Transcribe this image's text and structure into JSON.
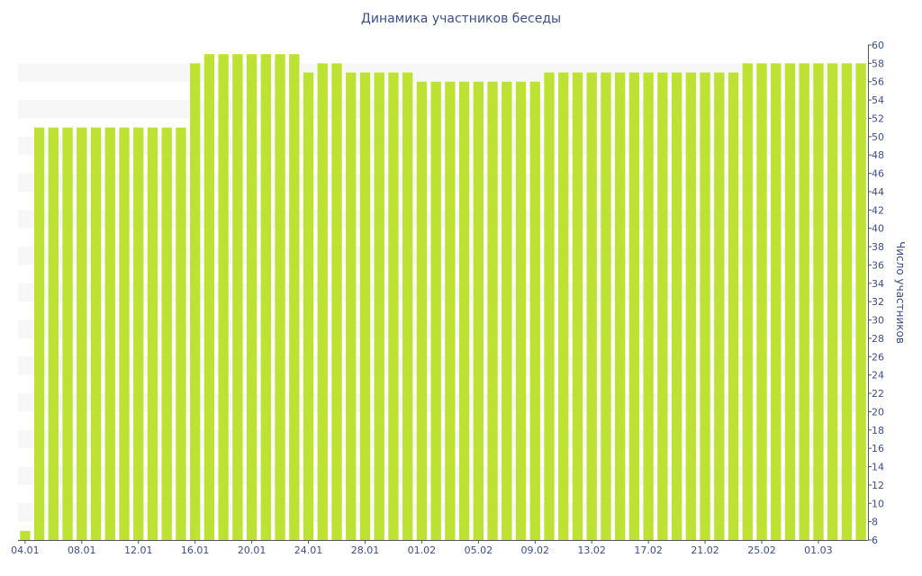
{
  "chart_data": {
    "type": "bar",
    "title": "Динамика участников беседы",
    "ylabel": "Число участников",
    "xlabel": "",
    "ylim": [
      6,
      60
    ],
    "ytick_step": 2,
    "grid": "horizontal-bands",
    "colors": {
      "bar": "#bde233",
      "band": "#f7f7f7",
      "text": "#3a4f8a",
      "axis": "#555555"
    },
    "x_tick_labels": [
      "04.01",
      "08.01",
      "12.01",
      "16.01",
      "20.01",
      "24.01",
      "28.01",
      "01.02",
      "05.02",
      "09.02",
      "13.02",
      "17.02",
      "21.02",
      "25.02",
      "01.03"
    ],
    "x_tick_every": 4,
    "categories": [
      "04.01",
      "05.01",
      "06.01",
      "07.01",
      "08.01",
      "09.01",
      "10.01",
      "11.01",
      "12.01",
      "13.01",
      "14.01",
      "15.01",
      "16.01",
      "17.01",
      "18.01",
      "19.01",
      "20.01",
      "21.01",
      "22.01",
      "23.01",
      "24.01",
      "25.01",
      "26.01",
      "27.01",
      "28.01",
      "29.01",
      "30.01",
      "31.01",
      "01.02",
      "02.02",
      "03.02",
      "04.02",
      "05.02",
      "06.02",
      "07.02",
      "08.02",
      "09.02",
      "10.02",
      "11.02",
      "12.02",
      "13.02",
      "14.02",
      "15.02",
      "16.02",
      "17.02",
      "18.02",
      "19.02",
      "20.02",
      "21.02",
      "22.02",
      "23.02",
      "24.02",
      "25.02",
      "26.02",
      "27.02",
      "28.02",
      "01.03",
      "02.03",
      "03.03",
      "04.03"
    ],
    "values": [
      7,
      51,
      51,
      51,
      51,
      51,
      51,
      51,
      51,
      51,
      51,
      51,
      58,
      59,
      59,
      59,
      59,
      59,
      59,
      59,
      57,
      58,
      58,
      57,
      57,
      57,
      57,
      57,
      56,
      56,
      56,
      56,
      56,
      56,
      56,
      56,
      56,
      57,
      57,
      57,
      57,
      57,
      57,
      57,
      57,
      57,
      57,
      57,
      57,
      57,
      57,
      58,
      58,
      58,
      58,
      58,
      58,
      58,
      58,
      58
    ]
  }
}
